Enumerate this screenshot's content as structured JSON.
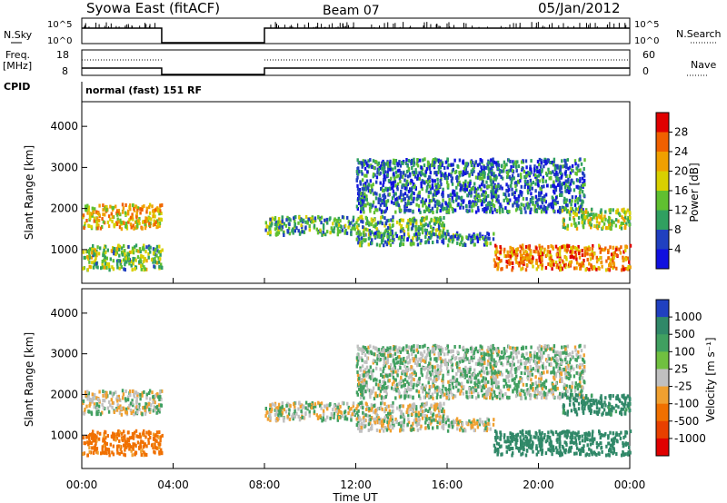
{
  "header": {
    "station": "Syowa East (fitACF)",
    "beam": "Beam 07",
    "date": "05/Jan/2012"
  },
  "top_panels": {
    "nsky_label": "N.Sky",
    "nsky_tick_top": "10^5",
    "nsky_tick_bottom": "10^0",
    "nsearch_label": "N.Search",
    "nsearch_tick_top": "10^5",
    "nsearch_tick_bottom": "10^0",
    "freq_label_1": "Freq.",
    "freq_label_2": "[MHz]",
    "freq_tick_top": "18",
    "freq_tick_bottom": "8",
    "nave_label": "Nave",
    "nave_tick_top": "60",
    "nave_tick_bottom": "0",
    "cpid_label": "CPID",
    "cpid_text": "normal (fast) 151 RF"
  },
  "power_panel": {
    "ylabel": "Slant Range [km]",
    "cbar_label": "Power [dB]",
    "cbar_ticks": [
      "28",
      "24",
      "20",
      "16",
      "12",
      "8",
      "4"
    ],
    "cbar_colors": [
      "#e00000",
      "#f06000",
      "#f0a000",
      "#d8d000",
      "#60c030",
      "#30a060",
      "#2040c0",
      "#1010e0"
    ]
  },
  "velocity_panel": {
    "ylabel": "Slant Range [km]",
    "cbar_label": "Velocity [m s⁻¹]",
    "cbar_ticks": [
      "1000",
      "500",
      "100",
      "25",
      "-25",
      "-100",
      "-500",
      "-1000"
    ],
    "cbar_colors": [
      "#2040c0",
      "#308868",
      "#40a060",
      "#70c040",
      "#c0c0c0",
      "#f0a030",
      "#f07000",
      "#e84000",
      "#e00000"
    ]
  },
  "xaxis": {
    "title": "Time UT",
    "ticks": [
      "00:00",
      "04:00",
      "08:00",
      "12:00",
      "16:00",
      "20:00",
      "00:00"
    ]
  },
  "chart_data": {
    "type": "heatmap",
    "title": "Syowa East (fitACF)  Beam 07  05/Jan/2012",
    "xlabel": "Time UT",
    "ylabel": "Slant Range [km]",
    "xlim": [
      "00:00",
      "24:00"
    ],
    "ylim": [
      180,
      4600
    ],
    "ytick_labels": [
      "1000",
      "2000",
      "3000",
      "4000"
    ],
    "data_gap": [
      "03:30",
      "08:00"
    ],
    "power_cbar_range_dB": [
      0,
      32
    ],
    "velocity_cbar_range_ms": [
      -1000,
      1000
    ],
    "echo_regions": [
      {
        "name": "band_1700",
        "t_start": 0,
        "t_end": 3.5,
        "range_lo": 1500,
        "range_hi": 2100,
        "power": 20,
        "velocity": 0
      },
      {
        "name": "band_early_low",
        "t_start": 0,
        "t_end": 3.5,
        "range_lo": 500,
        "range_hi": 1100,
        "power": 14,
        "velocity": -150
      },
      {
        "name": "band_1550",
        "t_start": 8,
        "t_end": 16,
        "range_lo": 1350,
        "range_hi": 1800,
        "power": 12,
        "velocity": 0
      },
      {
        "name": "band_1300",
        "t_start": 12,
        "t_end": 18,
        "range_lo": 1100,
        "range_hi": 1400,
        "power": 10,
        "velocity": 0
      },
      {
        "name": "scatter_late_high",
        "t_start": 12,
        "t_end": 22,
        "range_lo": 1900,
        "range_hi": 3200,
        "power": 8,
        "velocity": 20
      },
      {
        "name": "band_late_low",
        "t_start": 18,
        "t_end": 24,
        "range_lo": 500,
        "range_hi": 1100,
        "power": 24,
        "velocity": 200
      },
      {
        "name": "band_1800_late",
        "t_start": 21,
        "t_end": 24,
        "range_lo": 1500,
        "range_hi": 2000,
        "power": 16,
        "velocity": 150
      }
    ]
  }
}
